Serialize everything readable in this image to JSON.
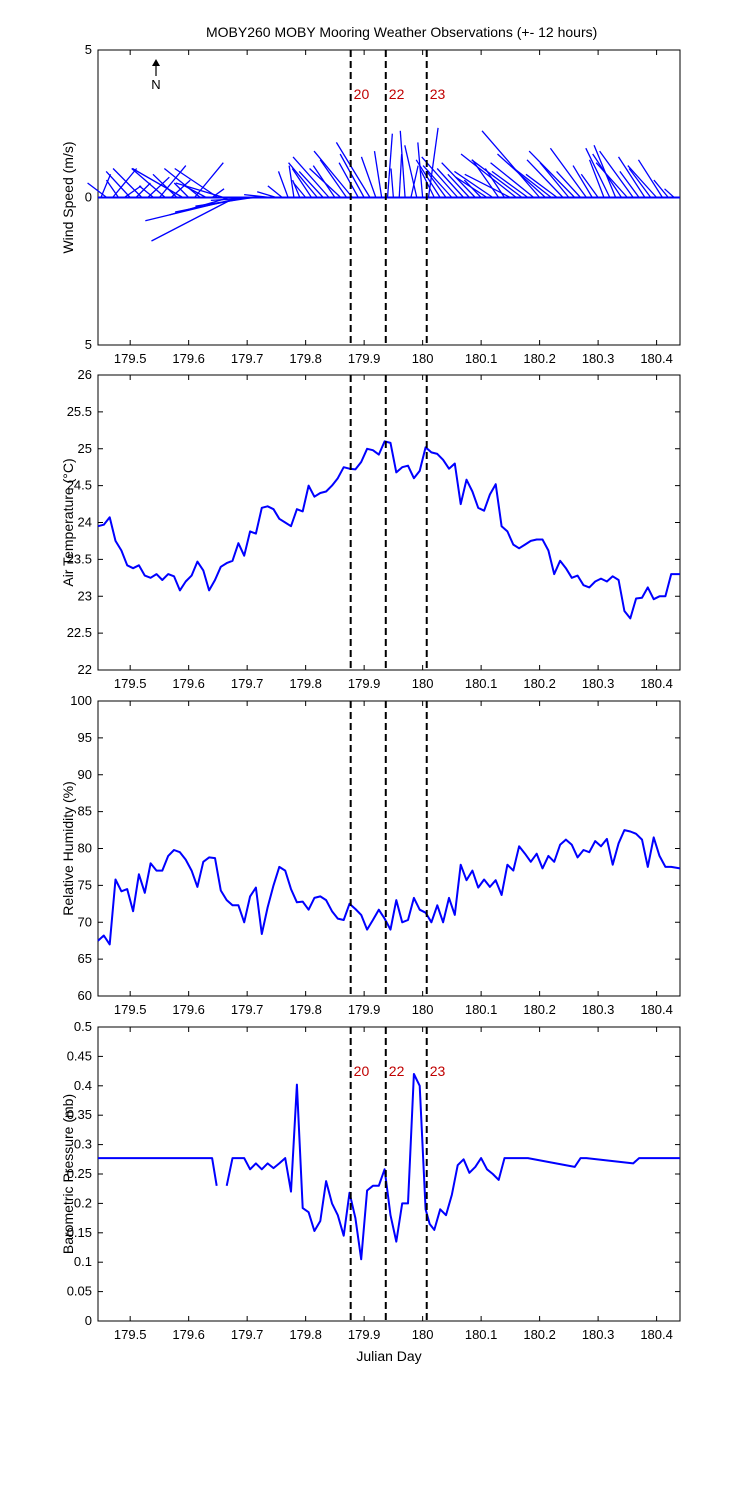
{
  "title": "MOBY260 MOBY Mooring Weather Observations (+- 12 hours)",
  "colors": {
    "series": "#0000ff",
    "annotation": "#c00000",
    "axes": "#000000"
  },
  "north_arrow_label": "N",
  "xlabel": "Julian Day",
  "x_ticks": [
    179.5,
    179.6,
    179.7,
    179.8,
    179.9,
    180,
    180.1,
    180.2,
    180.3,
    180.4
  ],
  "x_tick_labels": [
    "179.5",
    "179.6",
    "179.7",
    "179.8",
    "179.9",
    "180",
    "180.1",
    "180.2",
    "180.3",
    "180.4"
  ],
  "xlim": [
    179.445,
    180.44
  ],
  "markers": [
    {
      "x": 179.877,
      "label": "20"
    },
    {
      "x": 179.937,
      "label": "22"
    },
    {
      "x": 180.007,
      "label": "23"
    }
  ],
  "chart_data": [
    {
      "type": "line",
      "name": "wind",
      "ylabel": "Wind Speed (m/s)",
      "ylim": [
        -5,
        5
      ],
      "y_ticks": [
        5,
        0,
        -5
      ],
      "y_tick_labels": [
        "5",
        "0",
        "5"
      ],
      "show_marker_labels": true,
      "x": [
        179.45,
        179.46,
        179.47,
        179.48,
        179.49,
        179.5,
        179.51,
        179.52,
        179.53,
        179.54,
        179.55,
        179.56,
        179.57,
        179.58,
        179.59,
        179.6,
        179.61,
        179.62,
        179.63,
        179.64,
        179.65,
        179.66,
        179.67,
        179.68,
        179.69,
        179.7,
        179.71,
        179.72,
        179.73,
        179.74,
        179.75,
        179.76,
        179.77,
        179.78,
        179.79,
        179.8,
        179.81,
        179.82,
        179.83,
        179.84,
        179.85,
        179.86,
        179.87,
        179.88,
        179.89,
        179.9,
        179.91,
        179.92,
        179.93,
        179.94,
        179.95,
        179.96,
        179.97,
        179.98,
        179.99,
        180,
        180.01,
        180.02,
        180.03,
        180.04,
        180.05,
        180.06,
        180.07,
        180.08,
        180.09,
        180.1,
        180.11,
        180.12,
        180.13,
        180.14,
        180.15,
        180.16,
        180.17,
        180.18,
        180.19,
        180.2,
        180.21,
        180.22,
        180.23,
        180.24,
        180.25,
        180.26,
        180.27,
        180.28,
        180.29,
        180.3,
        180.31,
        180.32,
        180.33,
        180.34,
        180.35,
        180.36,
        180.37,
        180.38,
        180.39,
        180.4,
        180.41,
        180.42,
        180.43
      ],
      "u": [
        0.4,
        -0.8,
        1.0,
        -0.5,
        0.7,
        -1.0,
        0.6,
        -1.2,
        0.9,
        -0.6,
        1.1,
        -1.4,
        0.8,
        -1.0,
        -2.1,
        -0.6,
        1.2,
        -1.5,
        -0.9,
        0.5,
        -1.8,
        -2.0,
        -2.5,
        -3.5,
        -4.0,
        -3.0,
        -2.4,
        -2.0,
        -1.6,
        -1.1,
        -0.8,
        -0.6,
        -0.4,
        -0.2,
        -0.3,
        -0.5,
        -0.8,
        -1.2,
        -1.0,
        -1.5,
        -0.9,
        -1.3,
        -1.1,
        -1.6,
        -0.8,
        -1.0,
        -1.4,
        -0.6,
        -0.3,
        0.2,
        -0.1,
        0.1,
        -0.2,
        0.3,
        -0.5,
        -0.2,
        0.4,
        -0.6,
        -1.0,
        -0.8,
        -1.2,
        -1.5,
        -1.1,
        -0.9,
        -1.4,
        -0.7,
        -1.3,
        -1.6,
        -1.1,
        -0.8,
        -1.9,
        -2.3,
        -2.1,
        -1.5,
        -1.8,
        -2.4,
        -2.0,
        -1.7,
        -1.3,
        -1.5,
        -1.2,
        -1.9,
        -1.0,
        -1.5,
        -0.8,
        -0.7,
        -0.6,
        -1.0,
        -0.9,
        -1.2,
        -1.3,
        -1.4,
        -0.8,
        -1.1,
        -0.9,
        -1.2,
        -1.0,
        -0.6,
        -0.4
      ],
      "v": [
        0.8,
        0.5,
        1.0,
        0.6,
        0.4,
        0.9,
        0.5,
        1.0,
        0.7,
        0.4,
        1.1,
        1.0,
        0.6,
        0.8,
        1.0,
        0.5,
        1.2,
        1.0,
        0.4,
        0.3,
        1.0,
        0.5,
        -0.6,
        -1.5,
        -0.8,
        -0.5,
        -0.3,
        -0.1,
        0.0,
        0.1,
        0.2,
        0.4,
        0.9,
        1.1,
        0.6,
        0.5,
        1.0,
        1.2,
        0.9,
        1.4,
        1.1,
        1.0,
        1.3,
        1.6,
        1.2,
        1.5,
        1.9,
        1.4,
        1.6,
        2.2,
        1.0,
        1.5,
        2.3,
        1.1,
        1.8,
        1.9,
        2.4,
        1.0,
        1.3,
        0.9,
        1.1,
        1.4,
        1.0,
        0.8,
        1.2,
        0.6,
        0.7,
        0.9,
        1.3,
        1.0,
        0.8,
        1.5,
        1.3,
        0.9,
        1.2,
        2.3,
        1.5,
        1.1,
        0.8,
        1.3,
        1.2,
        1.6,
        0.9,
        1.7,
        1.1,
        0.8,
        1.3,
        1.7,
        1.8,
        1.5,
        1.2,
        1.6,
        0.9,
        1.4,
        1.0,
        1.1,
        1.3,
        0.6,
        0.3
      ]
    },
    {
      "type": "line",
      "name": "air_temperature",
      "ylabel": "Air Temperature (°C)",
      "ylim": [
        22,
        26
      ],
      "y_ticks": [
        22,
        22.5,
        23,
        23.5,
        24,
        24.5,
        25,
        25.5,
        26
      ],
      "y_tick_labels": [
        "22",
        "22.5",
        "23",
        "23.5",
        "24",
        "24.5",
        "25",
        "25.5",
        "26"
      ],
      "show_marker_labels": false,
      "x": [
        179.445,
        179.455,
        179.465,
        179.475,
        179.485,
        179.495,
        179.505,
        179.515,
        179.525,
        179.535,
        179.545,
        179.555,
        179.565,
        179.575,
        179.585,
        179.595,
        179.605,
        179.615,
        179.625,
        179.635,
        179.645,
        179.655,
        179.665,
        179.675,
        179.685,
        179.695,
        179.705,
        179.715,
        179.725,
        179.735,
        179.745,
        179.755,
        179.765,
        179.775,
        179.785,
        179.795,
        179.805,
        179.815,
        179.825,
        179.835,
        179.845,
        179.855,
        179.865,
        179.875,
        179.885,
        179.895,
        179.905,
        179.915,
        179.925,
        179.935,
        179.945,
        179.955,
        179.965,
        179.975,
        179.985,
        179.995,
        180.005,
        180.015,
        180.025,
        180.035,
        180.045,
        180.055,
        180.065,
        180.075,
        180.085,
        180.095,
        180.105,
        180.115,
        180.125,
        180.135,
        180.145,
        180.155,
        180.165,
        180.175,
        180.185,
        180.195,
        180.205,
        180.215,
        180.225,
        180.235,
        180.245,
        180.255,
        180.265,
        180.275,
        180.285,
        180.295,
        180.305,
        180.315,
        180.325,
        180.335,
        180.345,
        180.355,
        180.365,
        180.375,
        180.385,
        180.395,
        180.405,
        180.415,
        180.425,
        180.44
      ],
      "values": [
        23.95,
        23.97,
        24.07,
        23.75,
        23.62,
        23.42,
        23.38,
        23.42,
        23.28,
        23.25,
        23.3,
        23.22,
        23.3,
        23.27,
        23.08,
        23.2,
        23.28,
        23.47,
        23.35,
        23.08,
        23.22,
        23.4,
        23.45,
        23.48,
        23.72,
        23.55,
        23.88,
        23.85,
        24.2,
        24.22,
        24.18,
        24.05,
        24.0,
        23.95,
        24.18,
        24.15,
        24.5,
        24.35,
        24.4,
        24.42,
        24.5,
        24.6,
        24.75,
        24.73,
        24.72,
        24.82,
        25.0,
        24.98,
        24.92,
        25.1,
        25.08,
        24.68,
        24.75,
        24.77,
        24.6,
        24.7,
        25.02,
        24.95,
        24.93,
        24.85,
        24.73,
        24.8,
        24.25,
        24.58,
        24.42,
        24.2,
        24.16,
        24.38,
        24.52,
        23.95,
        23.88,
        23.7,
        23.65,
        23.7,
        23.75,
        23.77,
        23.77,
        23.62,
        23.3,
        23.48,
        23.38,
        23.25,
        23.28,
        23.15,
        23.12,
        23.2,
        23.24,
        23.2,
        23.27,
        23.22,
        22.8,
        22.7,
        22.97,
        22.98,
        23.12,
        22.96,
        23.0,
        23.0,
        23.3,
        23.3
      ]
    },
    {
      "type": "line",
      "name": "relative_humidity",
      "ylabel": "Relative Humidity (%)",
      "ylim": [
        60,
        100
      ],
      "y_ticks": [
        60,
        65,
        70,
        75,
        80,
        85,
        90,
        95,
        100
      ],
      "y_tick_labels": [
        "60",
        "65",
        "70",
        "75",
        "80",
        "85",
        "90",
        "95",
        "100"
      ],
      "show_marker_labels": false,
      "x": [
        179.445,
        179.455,
        179.465,
        179.475,
        179.485,
        179.495,
        179.505,
        179.515,
        179.525,
        179.535,
        179.545,
        179.555,
        179.565,
        179.575,
        179.585,
        179.595,
        179.605,
        179.615,
        179.625,
        179.635,
        179.645,
        179.655,
        179.665,
        179.675,
        179.685,
        179.695,
        179.705,
        179.715,
        179.725,
        179.735,
        179.745,
        179.755,
        179.765,
        179.775,
        179.785,
        179.795,
        179.805,
        179.815,
        179.825,
        179.835,
        179.845,
        179.855,
        179.865,
        179.875,
        179.885,
        179.895,
        179.905,
        179.915,
        179.925,
        179.935,
        179.945,
        179.955,
        179.965,
        179.975,
        179.985,
        179.995,
        180.005,
        180.015,
        180.025,
        180.035,
        180.045,
        180.055,
        180.065,
        180.075,
        180.085,
        180.095,
        180.105,
        180.115,
        180.125,
        180.135,
        180.145,
        180.155,
        180.165,
        180.175,
        180.185,
        180.195,
        180.205,
        180.215,
        180.225,
        180.235,
        180.245,
        180.255,
        180.265,
        180.275,
        180.285,
        180.295,
        180.305,
        180.315,
        180.325,
        180.335,
        180.345,
        180.355,
        180.365,
        180.375,
        180.385,
        180.395,
        180.405,
        180.415,
        180.425,
        180.44
      ],
      "values": [
        67.5,
        68.2,
        67.0,
        75.8,
        74.2,
        74.5,
        71.5,
        76.5,
        74.0,
        78.0,
        77.0,
        77.0,
        79.0,
        79.8,
        79.5,
        78.5,
        77.0,
        74.8,
        78.2,
        78.8,
        78.7,
        74.3,
        73.0,
        72.3,
        72.3,
        70.0,
        73.5,
        74.7,
        68.4,
        72.0,
        75.0,
        77.5,
        77.0,
        74.5,
        72.7,
        72.8,
        71.7,
        73.3,
        73.5,
        73.0,
        71.5,
        70.5,
        70.3,
        72.5,
        71.8,
        71.0,
        69.0,
        70.3,
        71.7,
        70.5,
        69.0,
        73.0,
        70.0,
        70.3,
        73.3,
        71.7,
        71.3,
        70.0,
        72.3,
        70.0,
        73.3,
        71.0,
        77.8,
        75.7,
        77.0,
        74.7,
        75.8,
        74.8,
        75.7,
        73.7,
        77.8,
        77.0,
        80.3,
        79.3,
        78.2,
        79.3,
        77.3,
        79.0,
        78.2,
        80.5,
        81.2,
        80.5,
        78.8,
        79.8,
        79.5,
        81.0,
        80.3,
        81.3,
        77.8,
        80.7,
        82.5,
        82.3,
        82.0,
        81.2,
        77.5,
        81.5,
        79.0,
        77.5,
        77.5,
        77.3
      ]
    },
    {
      "type": "line",
      "name": "barometric_pressure",
      "ylabel": "Barometric Pressure (mb)",
      "ylim": [
        0,
        0.5
      ],
      "y_ticks": [
        0,
        0.05,
        0.1,
        0.15,
        0.2,
        0.25,
        0.3,
        0.35,
        0.4,
        0.45,
        0.5
      ],
      "y_tick_labels": [
        "0",
        "0.05",
        "0.1",
        "0.15",
        "0.2",
        "0.25",
        "0.3",
        "0.35",
        "0.4",
        "0.45",
        "0.5"
      ],
      "show_marker_labels": true,
      "segments": [
        {
          "x": [
            179.445,
            179.64,
            179.648
          ],
          "values": [
            0.277,
            0.277,
            0.23
          ]
        },
        {
          "x": [
            179.665,
            179.675,
            179.685,
            179.695,
            179.705,
            179.715,
            179.725,
            179.735,
            179.745,
            179.755,
            179.765,
            179.775,
            179.785,
            179.795,
            179.805,
            179.815,
            179.825,
            179.835,
            179.845,
            179.855,
            179.865,
            179.875,
            179.885,
            179.895,
            179.905,
            179.915,
            179.925,
            179.935,
            179.945,
            179.955,
            179.965,
            179.975,
            179.985,
            179.995,
            180.005,
            180.012,
            180.02,
            180.03,
            180.04,
            180.05,
            180.06,
            180.07,
            180.08,
            180.09,
            180.1,
            180.11,
            180.12,
            180.13,
            180.14,
            180.15,
            180.16,
            180.17,
            180.18,
            180.26,
            180.27,
            180.28,
            180.36,
            180.37,
            180.38,
            180.44
          ],
          "values": [
            0.23,
            0.277,
            0.277,
            0.277,
            0.258,
            0.268,
            0.258,
            0.268,
            0.26,
            0.268,
            0.277,
            0.22,
            0.402,
            0.192,
            0.185,
            0.153,
            0.17,
            0.238,
            0.2,
            0.18,
            0.145,
            0.218,
            0.175,
            0.105,
            0.222,
            0.23,
            0.23,
            0.258,
            0.18,
            0.135,
            0.2,
            0.2,
            0.42,
            0.4,
            0.19,
            0.165,
            0.155,
            0.19,
            0.18,
            0.215,
            0.265,
            0.275,
            0.252,
            0.262,
            0.277,
            0.258,
            0.25,
            0.24,
            0.277,
            0.277,
            0.277,
            0.277,
            0.277,
            0.262,
            0.277,
            0.277,
            0.268,
            0.277,
            0.277,
            0.277
          ]
        }
      ]
    }
  ]
}
